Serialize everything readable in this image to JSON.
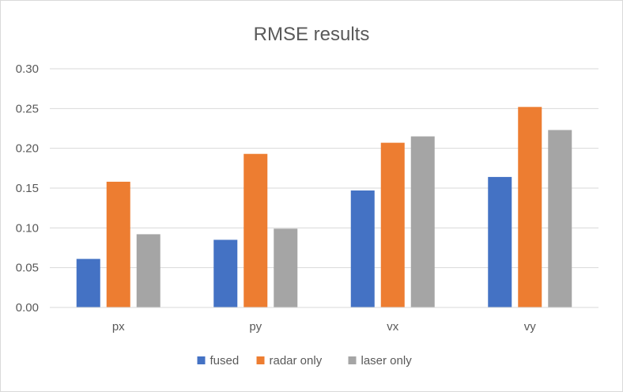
{
  "chart_data": {
    "type": "bar",
    "title": "RMSE results",
    "xlabel": "",
    "ylabel": "",
    "categories": [
      "px",
      "py",
      "vx",
      "vy"
    ],
    "series": [
      {
        "name": "fused",
        "color": "#4472c4",
        "values": [
          0.061,
          0.085,
          0.147,
          0.164
        ]
      },
      {
        "name": "radar only",
        "color": "#ed7d31",
        "values": [
          0.158,
          0.193,
          0.207,
          0.252
        ]
      },
      {
        "name": "laser only",
        "color": "#a5a5a5",
        "values": [
          0.092,
          0.099,
          0.215,
          0.223
        ]
      }
    ],
    "ylim": [
      0,
      0.3
    ],
    "yticks": [
      "0.00",
      "0.05",
      "0.10",
      "0.15",
      "0.20",
      "0.25",
      "0.30"
    ],
    "grid": true,
    "legend_position": "bottom"
  }
}
